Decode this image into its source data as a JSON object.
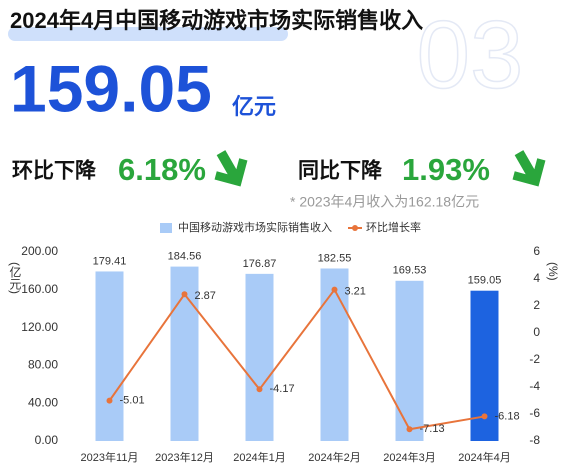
{
  "header": {
    "title": "2024年4月中国移动游戏市场实际销售收入",
    "amount": "159.05",
    "unit": "亿元",
    "page_number": "03",
    "mom_label": "环比下降",
    "mom_value": "6.18%",
    "yoy_label": "同比下降",
    "yoy_value": "1.93%",
    "note": "* 2023年4月收入为162.18亿元"
  },
  "chart_data": {
    "type": "bar",
    "categories": [
      "2023年11月",
      "2023年12月",
      "2024年1月",
      "2024年2月",
      "2024年3月",
      "2024年4月"
    ],
    "series": [
      {
        "name": "中国移动游戏市场实际销售收入",
        "type": "bar",
        "color": "#a9cbf7",
        "colors": [
          "#a9cbf7",
          "#a9cbf7",
          "#a9cbf7",
          "#a9cbf7",
          "#a9cbf7",
          "#1d63e0"
        ],
        "values": [
          179.41,
          184.56,
          176.87,
          182.55,
          169.53,
          159.05
        ]
      },
      {
        "name": "环比增长率",
        "type": "line",
        "axis": "y2",
        "color": "#e8743b",
        "values": [
          -5.01,
          2.87,
          -4.17,
          3.21,
          -7.13,
          -6.18
        ]
      }
    ],
    "y_label": "(亿元)",
    "y2_label": "(%)",
    "ylim": [
      0,
      200
    ],
    "yticks": [
      {
        "value": 0,
        "label": "0.00"
      },
      {
        "value": 40,
        "label": "40.00"
      },
      {
        "value": 80,
        "label": "80.00"
      },
      {
        "value": 120,
        "label": "120.00"
      },
      {
        "value": 160,
        "label": "160.00"
      },
      {
        "value": 200,
        "label": "200.00"
      }
    ],
    "y2lim": [
      -8,
      6
    ],
    "y2ticks": [
      -8,
      -6,
      -4,
      -2,
      0,
      2,
      4,
      6
    ],
    "legend": "top"
  }
}
